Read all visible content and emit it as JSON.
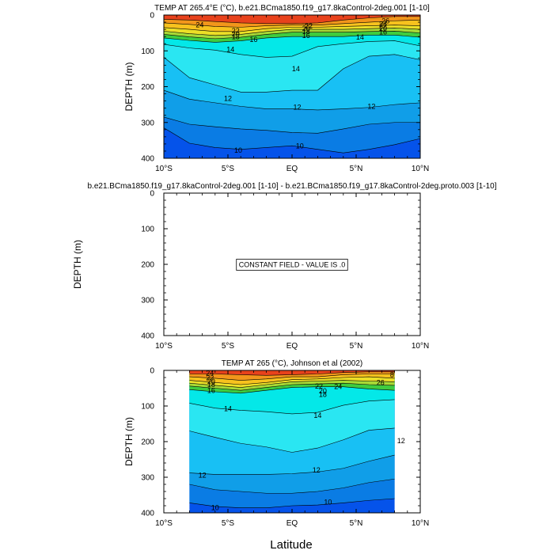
{
  "figure": {
    "shared_xlabel": "Latitude"
  },
  "chart_data": [
    {
      "type": "contour",
      "title": "TEMP AT 265.4°E (°C), b.e21.BCma1850.f19_g17.8kaControl-2deg.001 [1-10]",
      "xlabel": "Latitude",
      "ylabel": "DEPTH (m)",
      "xlim": [
        -10,
        10
      ],
      "ylim": [
        400,
        0
      ],
      "x_ticks": [
        "10°S",
        "5°S",
        "EQ",
        "5°N",
        "10°N"
      ],
      "x_tick_values": [
        -10,
        -5,
        0,
        5,
        10
      ],
      "y_ticks": [
        "0",
        "100",
        "200",
        "300",
        "400"
      ],
      "y_tick_values": [
        0,
        100,
        200,
        300,
        400
      ],
      "data_xrange": [
        -10,
        10
      ],
      "x": [
        -10,
        -8,
        -6,
        -4,
        -2,
        0,
        2,
        4,
        6,
        8,
        10
      ],
      "isotherms": [
        {
          "level": 26,
          "depth": [
            12,
            14,
            18,
            22,
            24,
            24,
            22,
            14,
            8,
            4,
            4
          ]
        },
        {
          "level": 24,
          "depth": [
            22,
            26,
            32,
            34,
            30,
            28,
            28,
            24,
            20,
            16,
            14
          ]
        },
        {
          "level": 22,
          "depth": [
            35,
            40,
            46,
            46,
            38,
            34,
            34,
            32,
            30,
            28,
            30
          ]
        },
        {
          "level": 20,
          "depth": [
            45,
            52,
            57,
            54,
            46,
            40,
            40,
            40,
            38,
            36,
            40
          ]
        },
        {
          "level": 18,
          "depth": [
            54,
            61,
            66,
            62,
            54,
            48,
            48,
            48,
            46,
            45,
            50
          ]
        },
        {
          "level": 16,
          "depth": [
            64,
            71,
            76,
            72,
            64,
            60,
            60,
            60,
            56,
            56,
            62
          ]
        },
        {
          "level": 14,
          "depth": [
            82,
            92,
            98,
            110,
            118,
            115,
            88,
            80,
            74,
            72,
            86
          ]
        },
        {
          "level": 13,
          "depth": [
            118,
            175,
            195,
            215,
            215,
            210,
            210,
            150,
            115,
            110,
            125
          ]
        },
        {
          "level": 12,
          "depth": [
            210,
            235,
            245,
            255,
            262,
            262,
            265,
            262,
            258,
            250,
            245
          ]
        },
        {
          "level": 11,
          "depth": [
            285,
            305,
            312,
            318,
            322,
            328,
            330,
            318,
            305,
            300,
            300
          ]
        },
        {
          "level": 10,
          "depth": [
            315,
            358,
            370,
            375,
            370,
            365,
            375,
            385,
            375,
            362,
            345
          ]
        }
      ],
      "labels": [
        {
          "text": "24",
          "x": -7.2,
          "depth": 28
        },
        {
          "text": "22",
          "x": -4.4,
          "depth": 44
        },
        {
          "text": "20",
          "x": -4.4,
          "depth": 53
        },
        {
          "text": "18",
          "x": -4.4,
          "depth": 61
        },
        {
          "text": "16",
          "x": -3.0,
          "depth": 68
        },
        {
          "text": "14",
          "x": -4.8,
          "depth": 96
        },
        {
          "text": "22",
          "x": 1.3,
          "depth": 31
        },
        {
          "text": "20",
          "x": 1.1,
          "depth": 38
        },
        {
          "text": "18",
          "x": 1.1,
          "depth": 46
        },
        {
          "text": "16",
          "x": 1.1,
          "depth": 58
        },
        {
          "text": "14",
          "x": 0.3,
          "depth": 150
        },
        {
          "text": "14",
          "x": 5.3,
          "depth": 62
        },
        {
          "text": "26",
          "x": 7.3,
          "depth": 17
        },
        {
          "text": "24",
          "x": 7.1,
          "depth": 25
        },
        {
          "text": "22",
          "x": 7.1,
          "depth": 31
        },
        {
          "text": "20",
          "x": 7.1,
          "depth": 38
        },
        {
          "text": "16",
          "x": 7.1,
          "depth": 48
        },
        {
          "text": "12",
          "x": -5.0,
          "depth": 233
        },
        {
          "text": "12",
          "x": 0.4,
          "depth": 257
        },
        {
          "text": "12",
          "x": 6.2,
          "depth": 255
        },
        {
          "text": "10",
          "x": -4.2,
          "depth": 378
        },
        {
          "text": "10",
          "x": 0.6,
          "depth": 366
        }
      ]
    },
    {
      "type": "contour",
      "title": "b.e21.BCma1850.f19_g17.8kaControl-2deg.001 [1-10] - b.e21.BCma1850.f19_g17.8kaControl-2deg.proto.003 [1-10]",
      "xlabel": "Latitude",
      "ylabel": "DEPTH (m)",
      "xlim": [
        -10,
        10
      ],
      "ylim": [
        400,
        0
      ],
      "x_ticks": [
        "10°S",
        "5°S",
        "EQ",
        "5°N",
        "10°N"
      ],
      "x_tick_values": [
        -10,
        -5,
        0,
        5,
        10
      ],
      "y_ticks": [
        "0",
        "100",
        "200",
        "300",
        "400"
      ],
      "y_tick_values": [
        0,
        100,
        200,
        300,
        400
      ],
      "annotation": "CONSTANT FIELD - VALUE IS .0",
      "x": [],
      "isotherms": [],
      "labels": []
    },
    {
      "type": "contour",
      "title": "TEMP AT 265 (°C), Johnson et al (2002)",
      "xlabel": "Latitude",
      "ylabel": "DEPTH (m)",
      "xlim": [
        -10,
        10
      ],
      "ylim": [
        400,
        0
      ],
      "x_ticks": [
        "10°S",
        "5°S",
        "EQ",
        "5°N",
        "10°N"
      ],
      "x_tick_values": [
        -10,
        -5,
        0,
        5,
        10
      ],
      "y_ticks": [
        "0",
        "100",
        "200",
        "300",
        "400"
      ],
      "y_tick_values": [
        0,
        100,
        200,
        300,
        400
      ],
      "data_xrange": [
        -8,
        8
      ],
      "x": [
        -8,
        -6,
        -4,
        -2,
        0,
        2,
        4,
        6,
        8
      ],
      "isotherms": [
        {
          "level": 26,
          "depth": [
            10,
            10,
            12,
            14,
            12,
            10,
            6,
            4,
            4
          ]
        },
        {
          "level": 24,
          "depth": [
            18,
            22,
            28,
            24,
            18,
            18,
            12,
            10,
            10
          ]
        },
        {
          "level": 22,
          "depth": [
            28,
            34,
            40,
            34,
            26,
            24,
            20,
            18,
            22
          ]
        },
        {
          "level": 20,
          "depth": [
            36,
            42,
            48,
            40,
            32,
            30,
            28,
            30,
            32
          ]
        },
        {
          "level": 18,
          "depth": [
            44,
            50,
            56,
            48,
            40,
            38,
            36,
            40,
            42
          ]
        },
        {
          "level": 16,
          "depth": [
            54,
            60,
            64,
            56,
            48,
            46,
            46,
            52,
            56
          ]
        },
        {
          "level": 14,
          "depth": [
            92,
            106,
            112,
            116,
            122,
            118,
            98,
            86,
            82
          ]
        },
        {
          "level": 13,
          "depth": [
            170,
            188,
            205,
            215,
            230,
            218,
            195,
            168,
            162
          ]
        },
        {
          "level": 12,
          "depth": [
            288,
            292,
            292,
            292,
            290,
            285,
            275,
            255,
            238
          ]
        },
        {
          "level": 11,
          "depth": [
            320,
            335,
            340,
            345,
            345,
            340,
            330,
            315,
            305
          ]
        },
        {
          "level": 10,
          "depth": [
            372,
            382,
            386,
            386,
            380,
            378,
            372,
            365,
            360
          ]
        }
      ],
      "labels": [
        {
          "text": "24",
          "x": -6.4,
          "depth": 8
        },
        {
          "text": "22",
          "x": -6.4,
          "depth": 21
        },
        {
          "text": "20",
          "x": -6.3,
          "depth": 31
        },
        {
          "text": "18",
          "x": -6.3,
          "depth": 40
        },
        {
          "text": "16",
          "x": -6.3,
          "depth": 57
        },
        {
          "text": "14",
          "x": -5.0,
          "depth": 108
        },
        {
          "text": "22",
          "x": 2.1,
          "depth": 44
        },
        {
          "text": "20",
          "x": 2.4,
          "depth": 58
        },
        {
          "text": "18",
          "x": 2.4,
          "depth": 68
        },
        {
          "text": "24",
          "x": 3.6,
          "depth": 46
        },
        {
          "text": "26",
          "x": 6.9,
          "depth": 34
        },
        {
          "text": "8",
          "x": 7.8,
          "depth": 12
        },
        {
          "text": "14",
          "x": 2.0,
          "depth": 127
        },
        {
          "text": "12",
          "x": 8.5,
          "depth": 198
        },
        {
          "text": "12",
          "x": -7.0,
          "depth": 294
        },
        {
          "text": "12",
          "x": 1.9,
          "depth": 280
        },
        {
          "text": "10",
          "x": -6.0,
          "depth": 385
        },
        {
          "text": "10",
          "x": 2.8,
          "depth": 370
        }
      ]
    }
  ],
  "colors": {
    "bands": {
      "26": "#e8421c",
      "24": "#f2961b",
      "22": "#f7c21e",
      "20": "#ecdf27",
      "18": "#a8d936",
      "16": "#3fcc3f",
      "14": "#04e8e8",
      "13": "#2ae6f2",
      "12": "#18c0f4",
      "11": "#109ee8",
      "10": "#0a7ce4",
      "below": "#0553ea"
    },
    "frame": "#000000"
  }
}
